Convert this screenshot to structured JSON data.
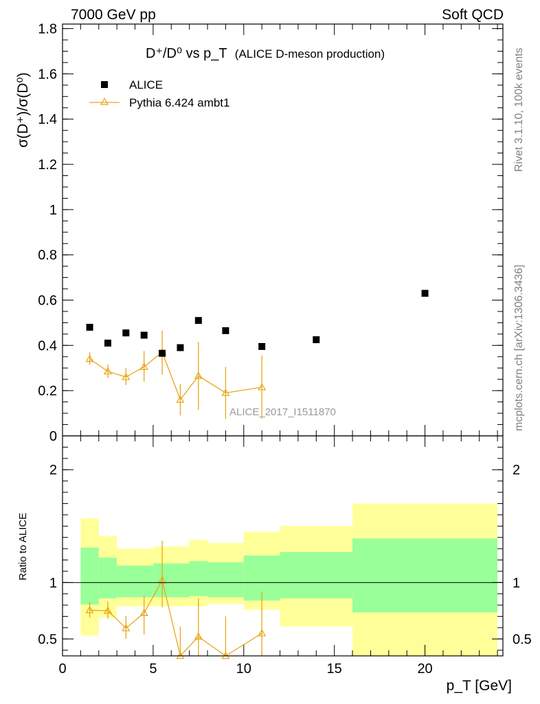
{
  "header": {
    "left": "7000 GeV pp",
    "right": "Soft QCD"
  },
  "side_text": {
    "upper": "Rivet 3.1.10,  100k events",
    "lower": "mcplots.cern.ch [arXiv:1306.3436]"
  },
  "colors": {
    "data": "#000000",
    "mc": "#e8a618",
    "band_inner": "#99ff99",
    "band_outer": "#ffff99"
  },
  "chart_data": {
    "type": "scatter",
    "title_main": "D⁺/D⁰ vs p_T",
    "title_sub": "(ALICE D-meson production)",
    "xlabel": "p_T [GeV]",
    "ylabel": "σ(D⁺)/σ(D⁰)",
    "ratio_ylabel": "Ratio to ALICE",
    "annotation": "ALICE_2017_I1511870",
    "xlim": [
      0,
      24.3
    ],
    "ylim": [
      0,
      1.82
    ],
    "ratio_ylim": [
      0.35,
      2.3
    ],
    "x_ticks": [
      {
        "v": 0,
        "label": "0"
      },
      {
        "v": 5,
        "label": "5"
      },
      {
        "v": 10,
        "label": "10"
      },
      {
        "v": 15,
        "label": "15"
      },
      {
        "v": 20,
        "label": "20"
      }
    ],
    "y_ticks": [
      {
        "v": 0,
        "label": "0"
      },
      {
        "v": 0.2,
        "label": "0.2"
      },
      {
        "v": 0.4,
        "label": "0.4"
      },
      {
        "v": 0.6,
        "label": "0.6"
      },
      {
        "v": 0.8,
        "label": "0.8"
      },
      {
        "v": 1.0,
        "label": "1"
      },
      {
        "v": 1.2,
        "label": "1.2"
      },
      {
        "v": 1.4,
        "label": "1.4"
      },
      {
        "v": 1.6,
        "label": "1.6"
      },
      {
        "v": 1.8,
        "label": "1.8"
      }
    ],
    "ratio_ticks": [
      {
        "v": 0.5,
        "label": "0.5"
      },
      {
        "v": 1,
        "label": "1"
      },
      {
        "v": 2,
        "label": "2"
      }
    ],
    "legend": {
      "position": "top-left",
      "entries": [
        "ALICE",
        "Pythia 6.424 ambt1"
      ]
    },
    "series": [
      {
        "name": "ALICE",
        "marker": "square",
        "points": [
          {
            "x": 1.5,
            "y": 0.48
          },
          {
            "x": 2.5,
            "y": 0.41
          },
          {
            "x": 3.5,
            "y": 0.455
          },
          {
            "x": 4.5,
            "y": 0.445
          },
          {
            "x": 5.5,
            "y": 0.365
          },
          {
            "x": 6.5,
            "y": 0.39
          },
          {
            "x": 7.5,
            "y": 0.51
          },
          {
            "x": 9.0,
            "y": 0.465
          },
          {
            "x": 11.0,
            "y": 0.395
          },
          {
            "x": 14.0,
            "y": 0.425
          },
          {
            "x": 20.0,
            "y": 0.63
          }
        ]
      },
      {
        "name": "Pythia 6.424 ambt1",
        "marker": "open-triangle",
        "points": [
          {
            "x": 1.5,
            "y": 0.34,
            "lo": 0.315,
            "hi": 0.37
          },
          {
            "x": 2.5,
            "y": 0.285,
            "lo": 0.255,
            "hi": 0.315
          },
          {
            "x": 3.5,
            "y": 0.26,
            "lo": 0.225,
            "hi": 0.3
          },
          {
            "x": 4.5,
            "y": 0.305,
            "lo": 0.24,
            "hi": 0.375
          },
          {
            "x": 5.5,
            "y": 0.37,
            "lo": 0.27,
            "hi": 0.465
          },
          {
            "x": 6.5,
            "y": 0.16,
            "lo": 0.09,
            "hi": 0.23
          },
          {
            "x": 7.5,
            "y": 0.265,
            "lo": 0.115,
            "hi": 0.415
          },
          {
            "x": 9.0,
            "y": 0.19,
            "lo": 0.075,
            "hi": 0.305
          },
          {
            "x": 11.0,
            "y": 0.215,
            "lo": 0.075,
            "hi": 0.355
          }
        ]
      }
    ],
    "ratio_series": [
      {
        "x": 1.5,
        "y": 0.755,
        "lo": 0.69,
        "hi": 0.825
      },
      {
        "x": 2.5,
        "y": 0.75,
        "lo": 0.68,
        "hi": 0.83
      },
      {
        "x": 3.5,
        "y": 0.595,
        "lo": 0.5,
        "hi": 0.705
      },
      {
        "x": 4.5,
        "y": 0.73,
        "lo": 0.54,
        "hi": 0.88
      },
      {
        "x": 5.5,
        "y": 1.02,
        "lo": 0.78,
        "hi": 1.37
      },
      {
        "x": 6.5,
        "y": 0.35,
        "lo": 0.35,
        "hi": 0.61
      },
      {
        "x": 7.5,
        "y": 0.52,
        "lo": 0.35,
        "hi": 0.86
      },
      {
        "x": 9.0,
        "y": 0.35,
        "lo": 0.35,
        "hi": 0.7
      },
      {
        "x": 11.0,
        "y": 0.55,
        "lo": 0.35,
        "hi": 0.92
      }
    ],
    "ratio_bands": [
      {
        "x0": 1,
        "x1": 2,
        "inner": [
          0.805,
          1.31
        ],
        "outer": [
          0.53,
          1.57
        ]
      },
      {
        "x0": 2,
        "x1": 3,
        "inner": [
          0.86,
          1.22
        ],
        "outer": [
          0.69,
          1.41
        ]
      },
      {
        "x0": 3,
        "x1": 5,
        "inner": [
          0.87,
          1.15
        ],
        "outer": [
          0.79,
          1.3
        ]
      },
      {
        "x0": 5,
        "x1": 7,
        "inner": [
          0.87,
          1.17
        ],
        "outer": [
          0.79,
          1.32
        ]
      },
      {
        "x0": 7,
        "x1": 8,
        "inner": [
          0.88,
          1.19
        ],
        "outer": [
          0.79,
          1.38
        ]
      },
      {
        "x0": 8,
        "x1": 10,
        "inner": [
          0.87,
          1.18
        ],
        "outer": [
          0.81,
          1.35
        ]
      },
      {
        "x0": 10,
        "x1": 12,
        "inner": [
          0.84,
          1.24
        ],
        "outer": [
          0.76,
          1.45
        ]
      },
      {
        "x0": 12,
        "x1": 16,
        "inner": [
          0.86,
          1.27
        ],
        "outer": [
          0.61,
          1.5
        ]
      },
      {
        "x0": 16,
        "x1": 24,
        "inner": [
          0.735,
          1.39
        ],
        "outer": [
          0.35,
          1.7
        ]
      }
    ]
  }
}
